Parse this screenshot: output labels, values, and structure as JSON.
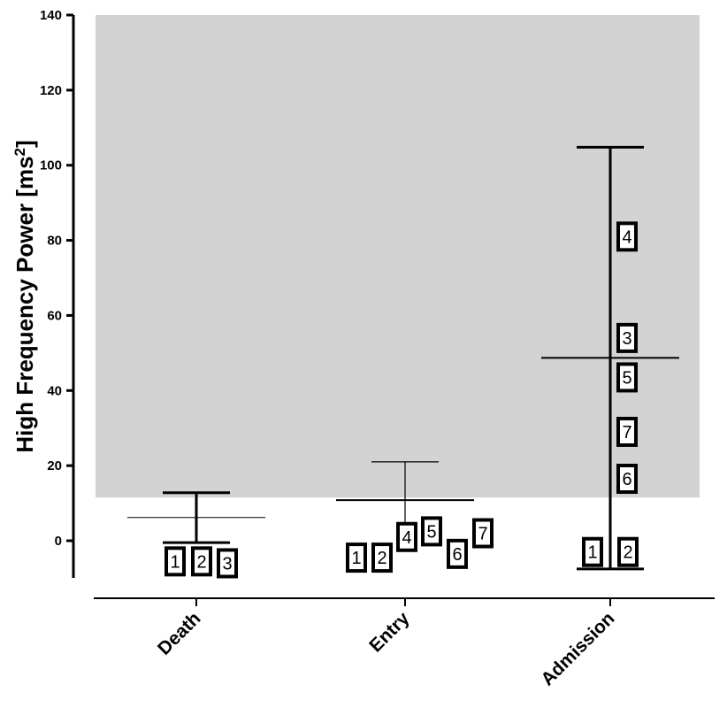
{
  "chart_data": {
    "type": "scatter",
    "ylabel": "High Frequency Power [ms²]",
    "ylabel_main": "High Frequency Power [ms",
    "ylabel_sup": "2",
    "ylabel_end": "]",
    "ylim": [
      -10,
      140
    ],
    "yticks": [
      0,
      20,
      40,
      60,
      80,
      100,
      120,
      140
    ],
    "categories": [
      "Death",
      "Entry",
      "Admission"
    ],
    "reference_band": {
      "from": 11.5,
      "to": 140,
      "color": "#d3d3d3"
    },
    "groups": [
      {
        "category": "Death",
        "mean": 6.2,
        "whisker_high": 12.8,
        "whisker_low": -0.5,
        "thick": true,
        "points": [
          {
            "label": "1",
            "y": -5.5
          },
          {
            "label": "2",
            "y": -5.5
          },
          {
            "label": "3",
            "y": -6.0
          }
        ]
      },
      {
        "category": "Entry",
        "mean": 10.8,
        "whisker_high": 21.0,
        "whisker_low": 0.6,
        "thick": false,
        "points": [
          {
            "label": "1",
            "y": -4.5
          },
          {
            "label": "2",
            "y": -4.5
          },
          {
            "label": "4",
            "y": 1.0
          },
          {
            "label": "5",
            "y": 2.5
          },
          {
            "label": "6",
            "y": -3.5
          },
          {
            "label": "7",
            "y": 2.0
          }
        ]
      },
      {
        "category": "Admission",
        "mean": 48.7,
        "whisker_high": 104.8,
        "whisker_low": -7.5,
        "thick": true,
        "points": [
          {
            "label": "1",
            "y": -3.0
          },
          {
            "label": "2",
            "y": -3.0
          },
          {
            "label": "3",
            "y": 54.0
          },
          {
            "label": "4",
            "y": 81.0
          },
          {
            "label": "5",
            "y": 43.5
          },
          {
            "label": "6",
            "y": 16.5
          },
          {
            "label": "7",
            "y": 29.0
          }
        ]
      }
    ],
    "grid": false,
    "legend": "none"
  }
}
